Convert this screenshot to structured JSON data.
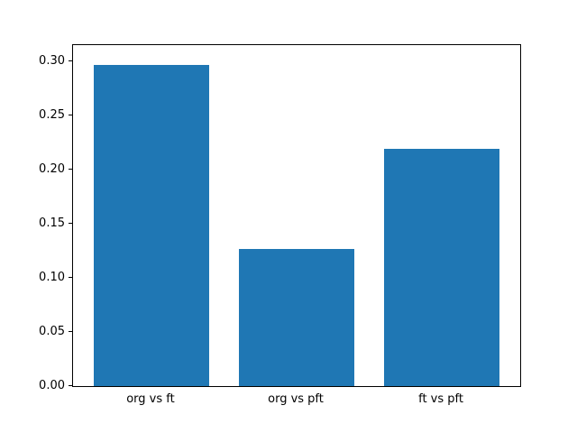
{
  "chart_data": {
    "type": "bar",
    "title": "",
    "xlabel": "",
    "ylabel": "",
    "categories": [
      "org vs ft",
      "org vs pft",
      "ft vs pft"
    ],
    "values": [
      0.297,
      0.127,
      0.219
    ],
    "bar_color": "#1f77b4",
    "ylim": [
      0,
      0.315
    ],
    "yticks": [
      0.0,
      0.05,
      0.1,
      0.15,
      0.2,
      0.25,
      0.3
    ],
    "ytick_labels": [
      "0.00",
      "0.05",
      "0.10",
      "0.15",
      "0.20",
      "0.25",
      "0.30"
    ],
    "grid": false,
    "legend": null,
    "bar_width_fraction": 0.8,
    "x_units_range": 3.08,
    "x_left_pad_units": 0.54
  }
}
